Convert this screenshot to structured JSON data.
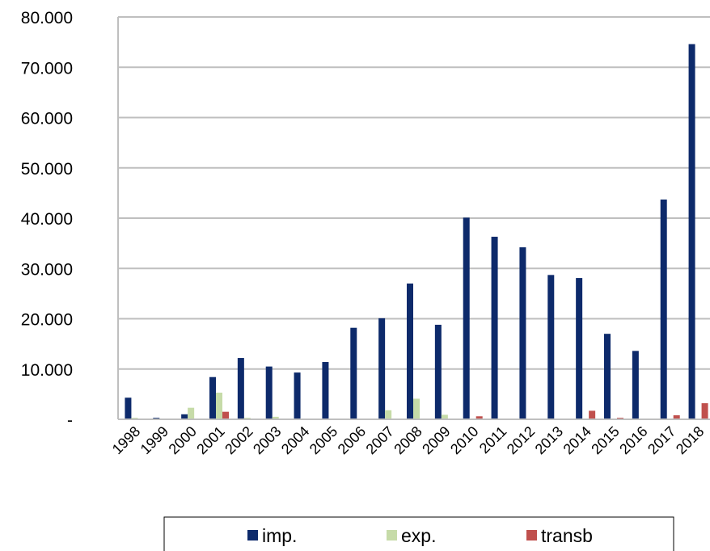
{
  "chart_data": {
    "type": "bar",
    "categories": [
      "1998",
      "1999",
      "2000",
      "2001",
      "2002",
      "2003",
      "2004",
      "2005",
      "2006",
      "2007",
      "2008",
      "2009",
      "2010",
      "2011",
      "2012",
      "2013",
      "2014",
      "2015",
      "2016",
      "2017",
      "2018"
    ],
    "series": [
      {
        "name": "imp.",
        "color": "#0d2a6b",
        "values": [
          4300,
          300,
          1000,
          8400,
          12200,
          10500,
          9300,
          11400,
          18200,
          20100,
          27000,
          18800,
          40100,
          36300,
          34200,
          28700,
          28100,
          17000,
          13600,
          43700,
          74600
        ]
      },
      {
        "name": "exp.",
        "color": "#c6dba8",
        "values": [
          300,
          0,
          2300,
          5300,
          300,
          500,
          0,
          0,
          0,
          1800,
          4100,
          900,
          0,
          0,
          0,
          0,
          0,
          0,
          0,
          0,
          0
        ]
      },
      {
        "name": "transb",
        "color": "#c0504d",
        "values": [
          0,
          0,
          0,
          1500,
          0,
          0,
          0,
          0,
          0,
          0,
          0,
          0,
          600,
          0,
          0,
          0,
          1700,
          300,
          0,
          800,
          3200
        ]
      }
    ],
    "y_ticks": [
      {
        "value": 0,
        "label": "-"
      },
      {
        "value": 10000,
        "label": "10.000"
      },
      {
        "value": 20000,
        "label": "20.000"
      },
      {
        "value": 30000,
        "label": "30.000"
      },
      {
        "value": 40000,
        "label": "40.000"
      },
      {
        "value": 50000,
        "label": "50.000"
      },
      {
        "value": 60000,
        "label": "60.000"
      },
      {
        "value": 70000,
        "label": "70.000"
      },
      {
        "value": 80000,
        "label": "80.000"
      }
    ],
    "ylim": [
      0,
      80000
    ],
    "grid": true,
    "legend_position": "bottom"
  }
}
